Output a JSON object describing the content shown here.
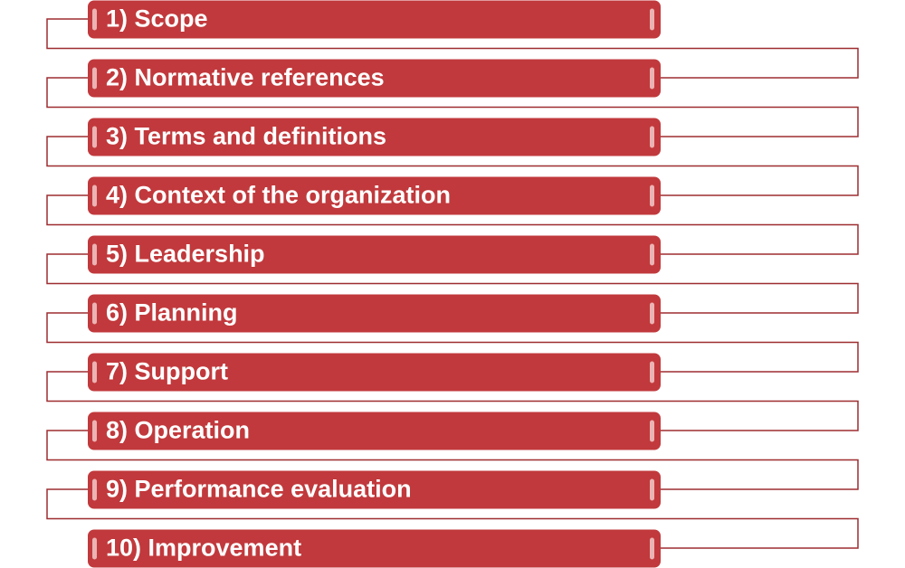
{
  "items": [
    "1) Scope",
    "2) Normative references",
    "3) Terms and definitions",
    "4) Context of the organization",
    "5) Leadership",
    "6) Planning",
    "7) Support",
    "8) Operation",
    "9) Performance evaluation",
    "10) Improvement"
  ]
}
